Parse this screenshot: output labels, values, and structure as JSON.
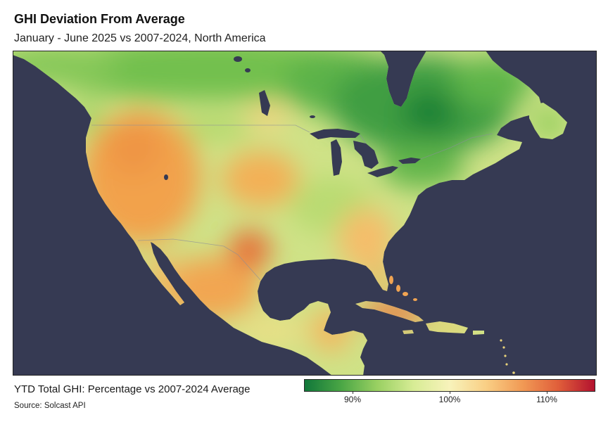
{
  "title": "GHI Deviation From Average",
  "subtitle": "January - June 2025 vs 2007-2024, North America",
  "legend": {
    "label": "YTD Total GHI: Percentage vs 2007-2024 Average",
    "min": 85,
    "max": 115,
    "ticks": [
      {
        "value": 90,
        "label": "90%"
      },
      {
        "value": 100,
        "label": "100%"
      },
      {
        "value": 110,
        "label": "110%"
      }
    ],
    "colors": [
      "#11773a",
      "#4aa645",
      "#99d062",
      "#d7ec95",
      "#f8f3bb",
      "#f9cf85",
      "#f19a55",
      "#e05e3a",
      "#b3122f"
    ]
  },
  "source": "Source: Solcast API",
  "map": {
    "ocean_color": "#363a53",
    "land_base_color": "#cfe287"
  }
}
